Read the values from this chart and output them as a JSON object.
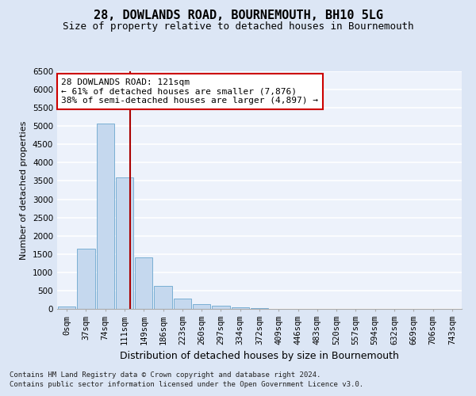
{
  "title": "28, DOWLANDS ROAD, BOURNEMOUTH, BH10 5LG",
  "subtitle": "Size of property relative to detached houses in Bournemouth",
  "xlabel": "Distribution of detached houses by size in Bournemouth",
  "ylabel": "Number of detached properties",
  "footer1": "Contains HM Land Registry data © Crown copyright and database right 2024.",
  "footer2": "Contains public sector information licensed under the Open Government Licence v3.0.",
  "bar_labels": [
    "0sqm",
    "37sqm",
    "74sqm",
    "111sqm",
    "149sqm",
    "186sqm",
    "223sqm",
    "260sqm",
    "297sqm",
    "334sqm",
    "372sqm",
    "409sqm",
    "446sqm",
    "483sqm",
    "520sqm",
    "557sqm",
    "594sqm",
    "632sqm",
    "669sqm",
    "706sqm",
    "743sqm"
  ],
  "bar_values": [
    60,
    1650,
    5080,
    3600,
    1400,
    620,
    280,
    130,
    80,
    50,
    25,
    10,
    5,
    2,
    0,
    0,
    0,
    0,
    0,
    0,
    0
  ],
  "bar_color": "#c5d8ee",
  "bar_edge_color": "#7aafd4",
  "vline_color": "#aa0000",
  "vline_x": 3.27,
  "annotation_text": "28 DOWLANDS ROAD: 121sqm\n← 61% of detached houses are smaller (7,876)\n38% of semi-detached houses are larger (4,897) →",
  "annotation_box_facecolor": "#ffffff",
  "annotation_box_edgecolor": "#cc0000",
  "ylim": [
    0,
    6500
  ],
  "yticks": [
    0,
    500,
    1000,
    1500,
    2000,
    2500,
    3000,
    3500,
    4000,
    4500,
    5000,
    5500,
    6000,
    6500
  ],
  "background_color": "#dce6f5",
  "plot_background_color": "#edf2fb",
  "grid_color": "#ffffff",
  "title_fontsize": 11,
  "subtitle_fontsize": 9,
  "xlabel_fontsize": 9,
  "ylabel_fontsize": 8,
  "tick_fontsize": 7.5,
  "annotation_fontsize": 8,
  "footer_fontsize": 6.5
}
